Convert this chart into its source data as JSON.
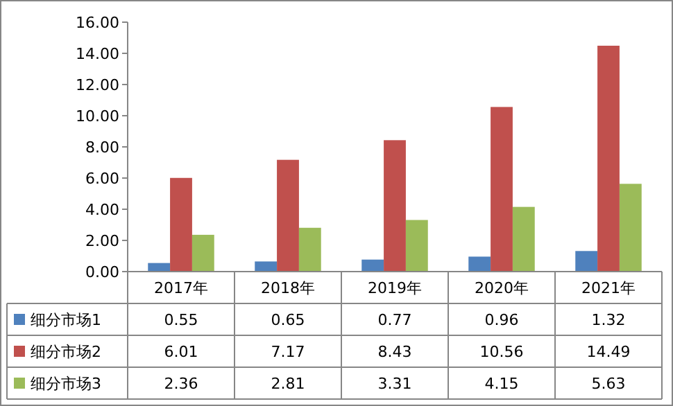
{
  "chart_data": {
    "type": "bar",
    "categories": [
      "2017年",
      "2018年",
      "2019年",
      "2020年",
      "2021年"
    ],
    "series": [
      {
        "name": "细分市场1",
        "color": "#4f81bd",
        "values": [
          0.55,
          0.65,
          0.77,
          0.96,
          1.32
        ]
      },
      {
        "name": "细分市场2",
        "color": "#c0504d",
        "values": [
          6.01,
          7.17,
          8.43,
          10.56,
          14.49
        ]
      },
      {
        "name": "细分市场3",
        "color": "#9bbb59",
        "values": [
          2.36,
          2.81,
          3.31,
          4.15,
          5.63
        ]
      }
    ],
    "ylim": [
      0,
      16
    ],
    "yticks": [
      {
        "value": 0,
        "label": "0.00"
      },
      {
        "value": 2,
        "label": "2.00"
      },
      {
        "value": 4,
        "label": "4.00"
      },
      {
        "value": 6,
        "label": "6.00"
      },
      {
        "value": 8,
        "label": "8.00"
      },
      {
        "value": 10,
        "label": "10.00"
      },
      {
        "value": 12,
        "label": "12.00"
      },
      {
        "value": 14,
        "label": "14.00"
      },
      {
        "value": 16,
        "label": "16.00"
      }
    ],
    "data_labels": true,
    "legend": "bottom"
  }
}
